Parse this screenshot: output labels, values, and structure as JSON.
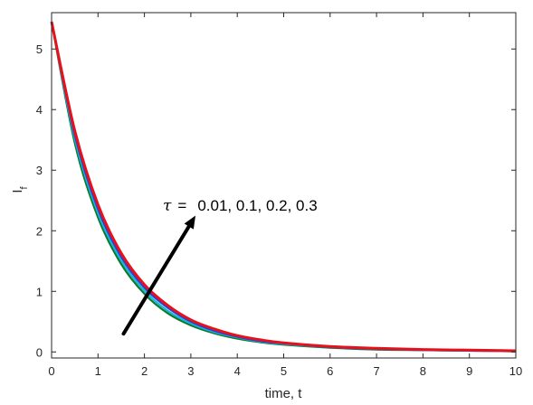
{
  "chart_data": {
    "type": "line",
    "title": "",
    "xlabel": "time, t",
    "ylabel_main": "I",
    "ylabel_sub": "f",
    "xlim": [
      0,
      10
    ],
    "ylim": [
      -0.1,
      5.6
    ],
    "xticks": [
      0,
      1,
      2,
      3,
      4,
      5,
      6,
      7,
      8,
      9,
      10
    ],
    "yticks": [
      0,
      1,
      2,
      3,
      4,
      5
    ],
    "grid": false,
    "x": [
      0,
      0.5,
      1,
      1.5,
      2,
      2.5,
      3,
      3.5,
      4,
      4.5,
      5,
      6,
      7,
      8,
      9,
      10
    ],
    "series": [
      {
        "tau": 0.01,
        "color": "#0a7a2a",
        "values": [
          5.45,
          3.45,
          2.22,
          1.45,
          0.96,
          0.64,
          0.44,
          0.31,
          0.22,
          0.16,
          0.12,
          0.07,
          0.04,
          0.03,
          0.02,
          0.01
        ]
      },
      {
        "tau": 0.1,
        "color": "#16b6d8",
        "values": [
          5.45,
          3.52,
          2.29,
          1.51,
          1.01,
          0.68,
          0.47,
          0.33,
          0.24,
          0.17,
          0.13,
          0.08,
          0.05,
          0.03,
          0.02,
          0.01
        ]
      },
      {
        "tau": 0.2,
        "color": "#2a3fd6",
        "values": [
          5.45,
          3.58,
          2.36,
          1.57,
          1.06,
          0.73,
          0.5,
          0.35,
          0.25,
          0.18,
          0.14,
          0.08,
          0.05,
          0.03,
          0.02,
          0.02
        ]
      },
      {
        "tau": 0.3,
        "color": "#e8101a",
        "values": [
          5.45,
          3.65,
          2.43,
          1.63,
          1.11,
          0.77,
          0.53,
          0.38,
          0.27,
          0.2,
          0.15,
          0.09,
          0.06,
          0.04,
          0.03,
          0.02
        ]
      }
    ],
    "annotation": {
      "symbol": "τ",
      "equals": "=",
      "values_text": "0.01, 0.1, 0.2, 0.3",
      "arrow_from": [
        1.55,
        0.3
      ],
      "arrow_to": [
        3.1,
        2.25
      ]
    }
  }
}
